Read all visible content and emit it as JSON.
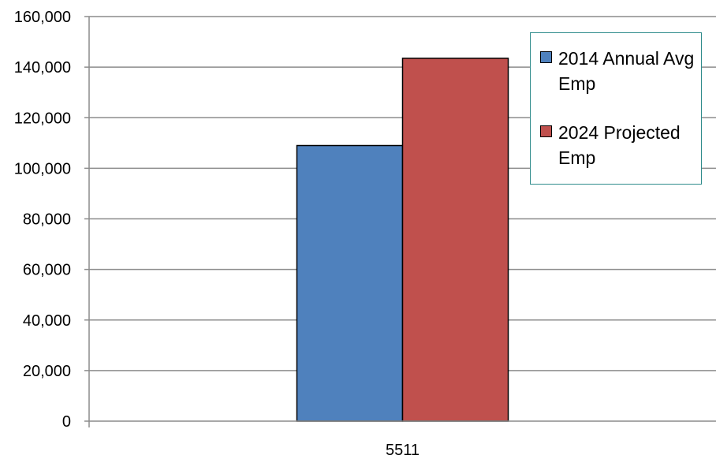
{
  "chart_data": {
    "type": "bar",
    "categories": [
      "5511"
    ],
    "series": [
      {
        "name": "2014 Annual Avg Emp",
        "values": [
          109000
        ],
        "color": "#4f81bd"
      },
      {
        "name": "2024 Projected Emp",
        "values": [
          143500
        ],
        "color": "#c0504d"
      }
    ],
    "title": "",
    "xlabel": "",
    "ylabel": "",
    "ylim": [
      0,
      160000
    ],
    "y_ticks": [
      "0",
      "20,000",
      "40,000",
      "60,000",
      "80,000",
      "100,000",
      "120,000",
      "140,000",
      "160,000"
    ],
    "y_tick_values": [
      0,
      20000,
      40000,
      60000,
      80000,
      100000,
      120000,
      140000,
      160000
    ],
    "grid": true,
    "legend_position": "top-right"
  }
}
